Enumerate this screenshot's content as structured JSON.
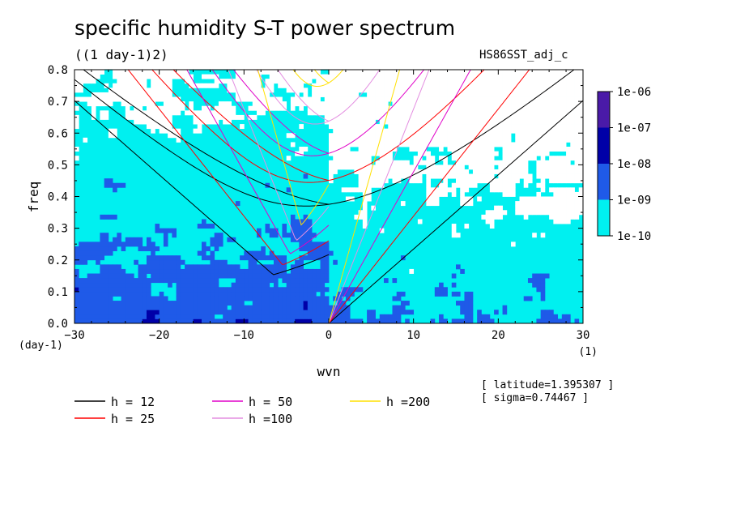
{
  "chart_data": {
    "type": "heatmap",
    "title": "specific humidity S-T power spectrum",
    "subtitle": "((1 day-1)2)",
    "run_label": "HS86SST_adj_c",
    "xlabel": "wvn",
    "ylabel": "freq",
    "x_unit": "(1)",
    "y_unit": "(day-1)",
    "xlim": [
      -30,
      30
    ],
    "ylim": [
      0,
      0.8
    ],
    "xticks": [
      -30,
      -20,
      -10,
      0,
      10,
      20,
      30
    ],
    "yticks": [
      0.0,
      0.1,
      0.2,
      0.3,
      0.4,
      0.5,
      0.6,
      0.7,
      0.8
    ],
    "colorbar": {
      "labels": [
        "1e-06",
        "1e-07",
        "1e-08",
        "1e-09",
        "1e-10"
      ],
      "colors": [
        "#4a1aa8",
        "#0000a8",
        "#1f5ae8",
        "#00f0f0"
      ]
    },
    "fill_colors": {
      "lowest": "#00f0f0",
      "low": "#1f5ae8",
      "mid": "#0000a8",
      "below_range": "#ffffff"
    },
    "legend": [
      {
        "label": "h = 12",
        "h": 12,
        "color": "#000000"
      },
      {
        "label": "h = 25",
        "h": 25,
        "color": "#ff0000"
      },
      {
        "label": "h = 50",
        "h": 50,
        "color": "#e000c8"
      },
      {
        "label": "h =100",
        "h": 100,
        "color": "#e38ee0"
      },
      {
        "label": "h =200",
        "h": 200,
        "color": "#ffe000"
      }
    ],
    "annotations": [
      "[ latitude=1.395307 ]",
      "[ sigma=0.74467 ]"
    ]
  }
}
